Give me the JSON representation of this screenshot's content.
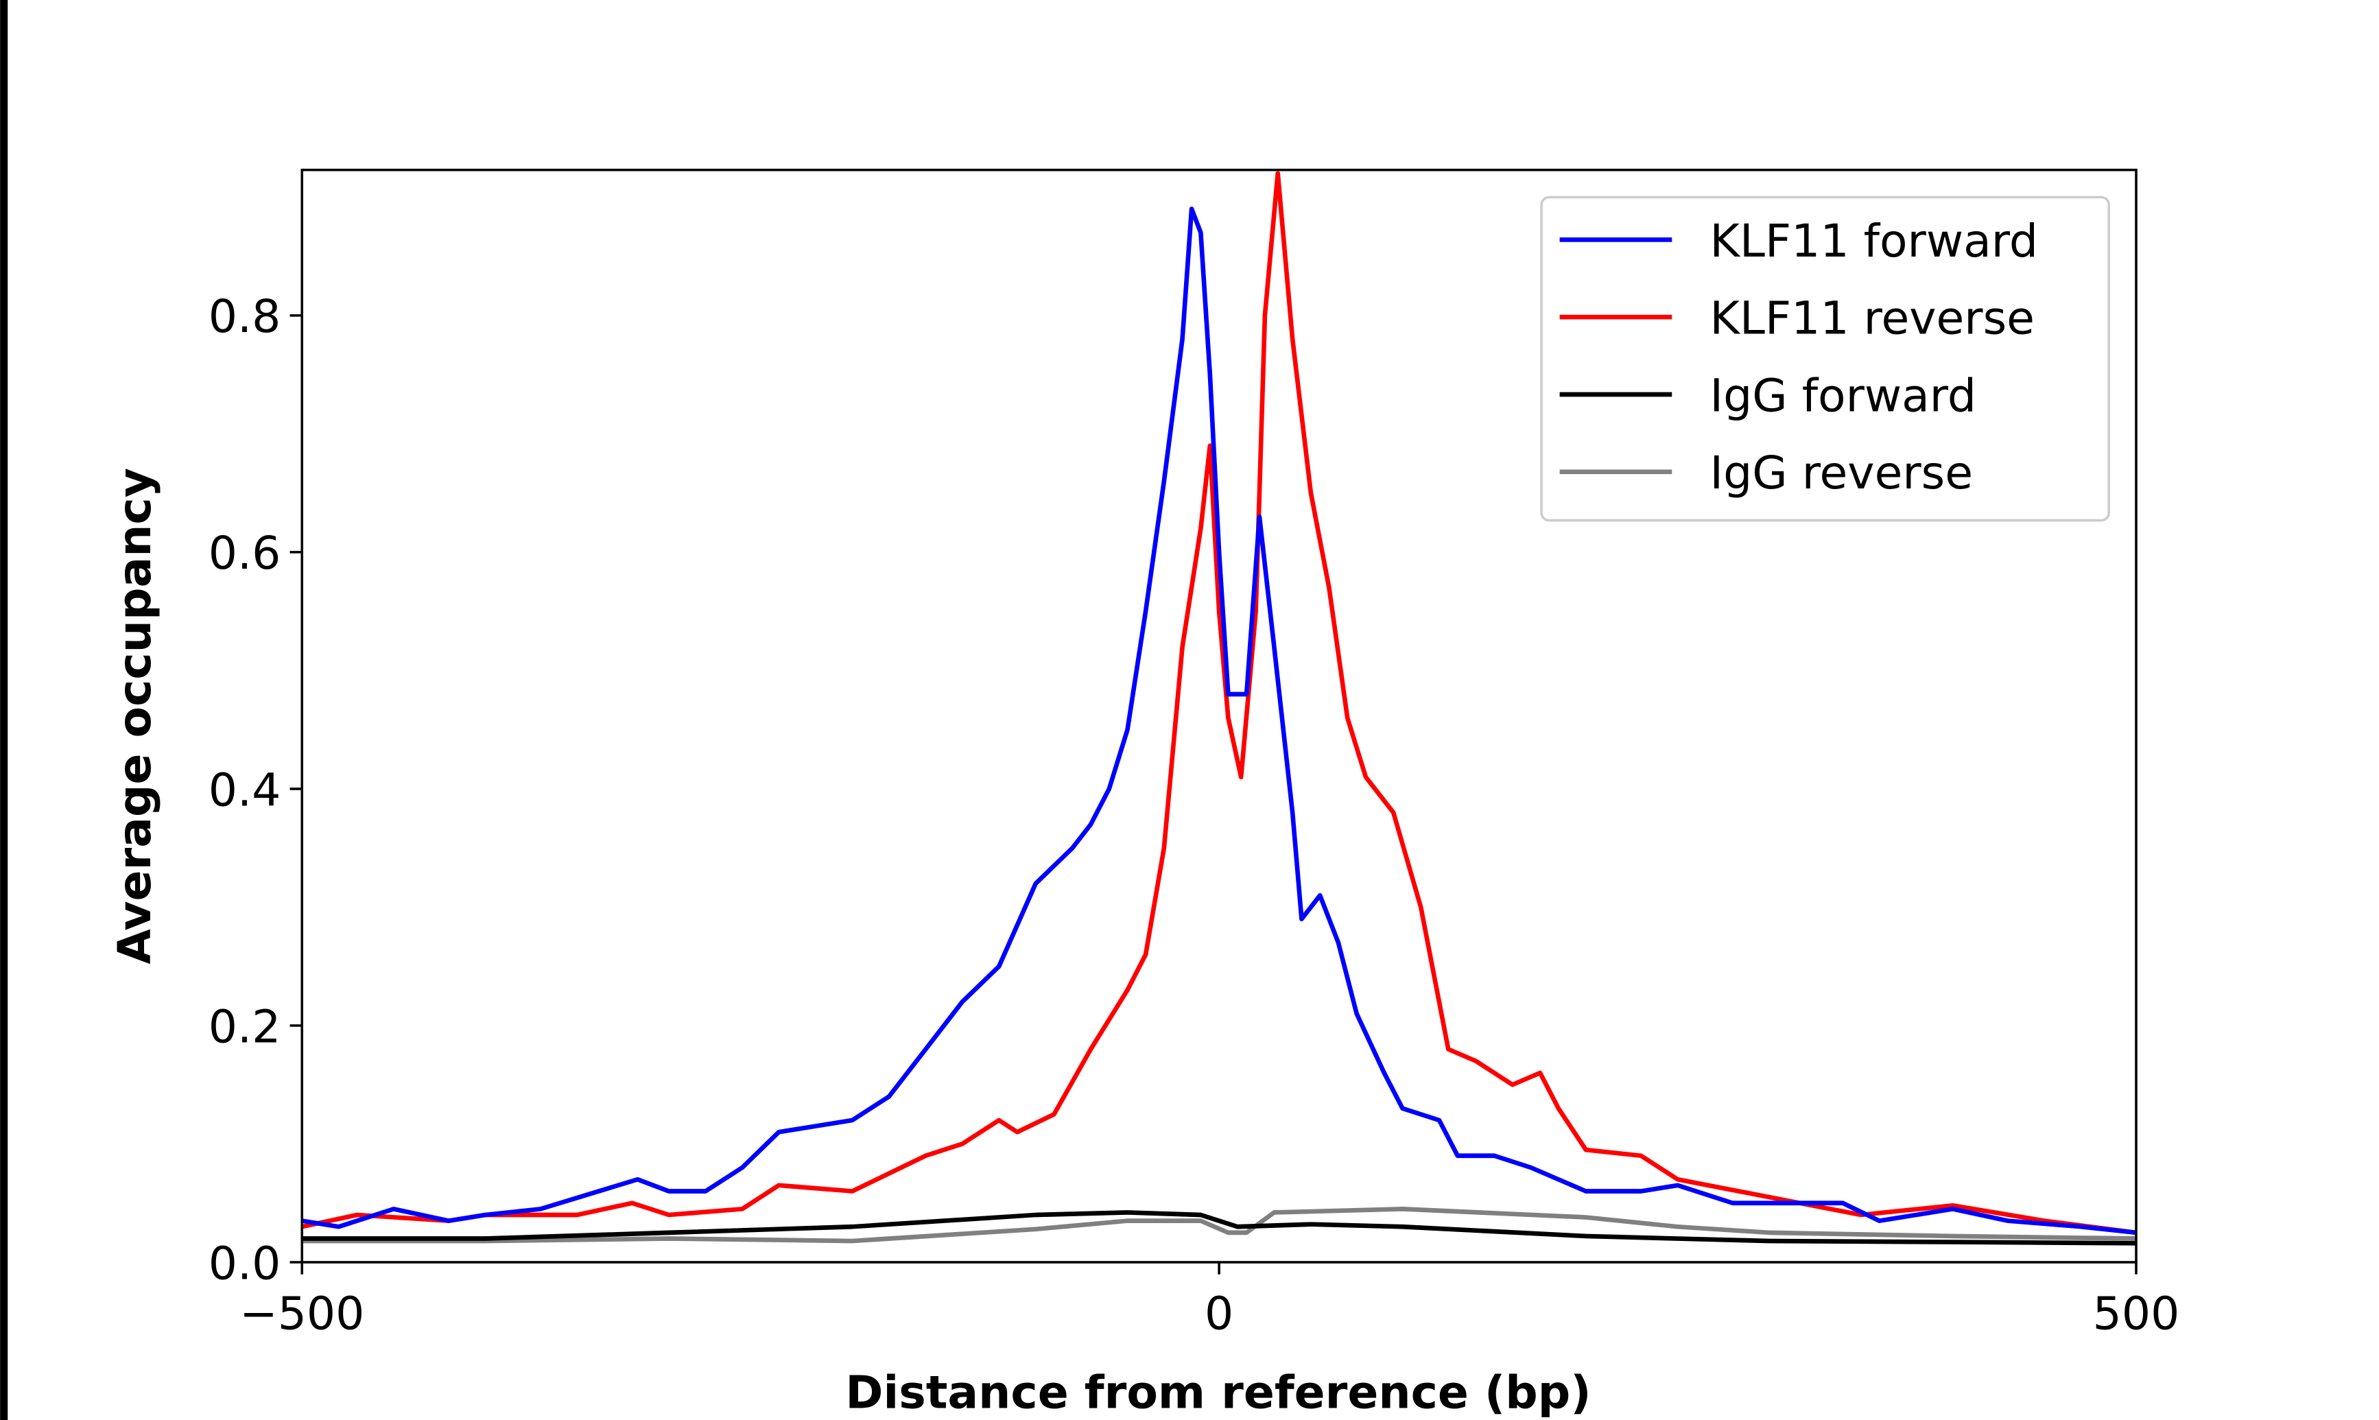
{
  "chart_data": {
    "type": "line",
    "title": "",
    "xlabel": "Distance from reference (bp)",
    "ylabel": "Average occupancy",
    "xlim": [
      -500,
      500
    ],
    "ylim": [
      0,
      0.923
    ],
    "xticks": [
      -500,
      0,
      500
    ],
    "xtick_labels": [
      "−500",
      "0",
      "500"
    ],
    "yticks": [
      0,
      0.2,
      0.4,
      0.6,
      0.8
    ],
    "ytick_labels": [
      "0.0",
      "0.2",
      "0.4",
      "0.6",
      "0.8"
    ],
    "grid": false,
    "legend_position": "top-right",
    "series": [
      {
        "name": "KLF11 forward",
        "color": "#0000ff",
        "x": [
          -500,
          -480,
          -450,
          -420,
          -400,
          -370,
          -317,
          -300,
          -280,
          -260,
          -240,
          -220,
          -200,
          -180,
          -160,
          -140,
          -120,
          -100,
          -80,
          -70,
          -60,
          -50,
          -40,
          -30,
          -20,
          -15,
          -10,
          -5,
          0,
          5,
          15,
          22,
          30,
          40,
          45,
          55,
          65,
          75,
          90,
          100,
          120,
          130,
          150,
          170,
          200,
          230,
          250,
          280,
          300,
          340,
          360,
          400,
          430,
          470,
          500
        ],
        "y": [
          0.035,
          0.03,
          0.045,
          0.035,
          0.04,
          0.045,
          0.07,
          0.06,
          0.06,
          0.08,
          0.11,
          0.115,
          0.12,
          0.14,
          0.18,
          0.22,
          0.25,
          0.32,
          0.35,
          0.37,
          0.4,
          0.45,
          0.55,
          0.66,
          0.78,
          0.89,
          0.87,
          0.75,
          0.6,
          0.48,
          0.48,
          0.63,
          0.52,
          0.38,
          0.29,
          0.31,
          0.27,
          0.21,
          0.16,
          0.13,
          0.12,
          0.09,
          0.09,
          0.08,
          0.06,
          0.06,
          0.065,
          0.05,
          0.05,
          0.05,
          0.035,
          0.045,
          0.035,
          0.03,
          0.025
        ]
      },
      {
        "name": "KLF11 reverse",
        "color": "#ff0000",
        "x": [
          -500,
          -470,
          -420,
          -400,
          -350,
          -320,
          -300,
          -260,
          -240,
          -200,
          -180,
          -160,
          -140,
          -120,
          -110,
          -90,
          -70,
          -50,
          -40,
          -30,
          -20,
          -10,
          -5,
          0,
          5,
          12,
          20,
          25,
          32,
          40,
          50,
          60,
          70,
          80,
          95,
          110,
          125,
          140,
          160,
          175,
          185,
          200,
          230,
          250,
          300,
          350,
          400,
          450,
          500
        ],
        "y": [
          0.03,
          0.04,
          0.035,
          0.04,
          0.04,
          0.05,
          0.04,
          0.045,
          0.065,
          0.06,
          0.075,
          0.09,
          0.1,
          0.12,
          0.11,
          0.125,
          0.18,
          0.23,
          0.26,
          0.35,
          0.52,
          0.62,
          0.69,
          0.55,
          0.46,
          0.41,
          0.55,
          0.8,
          0.92,
          0.78,
          0.65,
          0.57,
          0.46,
          0.41,
          0.38,
          0.3,
          0.18,
          0.17,
          0.15,
          0.16,
          0.13,
          0.095,
          0.09,
          0.07,
          0.055,
          0.04,
          0.048,
          0.035,
          0.025
        ]
      },
      {
        "name": "IgG forward",
        "color": "#000000",
        "x": [
          -500,
          -400,
          -300,
          -200,
          -100,
          -50,
          -10,
          10,
          50,
          100,
          200,
          300,
          400,
          500
        ],
        "y": [
          0.02,
          0.02,
          0.025,
          0.03,
          0.04,
          0.042,
          0.04,
          0.03,
          0.032,
          0.03,
          0.022,
          0.018,
          0.017,
          0.016
        ]
      },
      {
        "name": "IgG reverse",
        "color": "#808080",
        "x": [
          -500,
          -400,
          -300,
          -200,
          -100,
          -50,
          -10,
          5,
          15,
          30,
          100,
          200,
          250,
          300,
          400,
          500
        ],
        "y": [
          0.018,
          0.018,
          0.02,
          0.018,
          0.028,
          0.035,
          0.035,
          0.025,
          0.025,
          0.042,
          0.045,
          0.038,
          0.03,
          0.025,
          0.022,
          0.02
        ]
      }
    ]
  }
}
